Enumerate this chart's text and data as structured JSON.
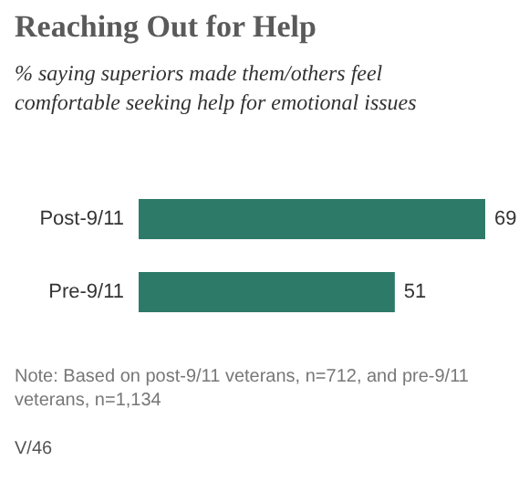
{
  "chart_data": {
    "type": "bar",
    "orientation": "horizontal",
    "title": "Reaching Out for Help",
    "subtitle": "% saying superiors made them/others feel comfortable seeking help for emotional issues",
    "categories": [
      "Post-9/11",
      "Pre-9/11"
    ],
    "values": [
      69,
      51
    ],
    "color": "#2e7a69",
    "data_labels": true,
    "annotations": [
      "Note: Based on post-9/11 veterans, n=712, and pre-9/11 veterans, n=1,134",
      "V/46"
    ]
  }
}
